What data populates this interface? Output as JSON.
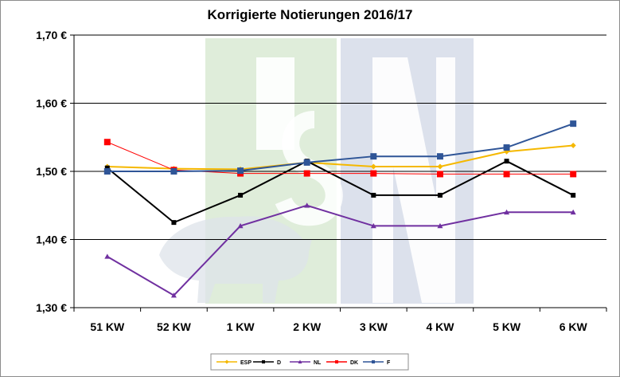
{
  "chart_data": {
    "type": "line",
    "title": "Korrigierte Notierungen 2016/17",
    "categories": [
      "51 KW",
      "52 KW",
      "1 KW",
      "2 KW",
      "3 KW",
      "4 KW",
      "5 KW",
      "6 KW"
    ],
    "y_ticks": [
      "1,30 €",
      "1,40 €",
      "1,50 €",
      "1,60 €",
      "1,70 €"
    ],
    "ylim": [
      1.3,
      1.7
    ],
    "grid": true,
    "legend_position": "bottom",
    "series": [
      {
        "name": "ESP",
        "color": "#f5b800",
        "marker": "diamond",
        "values": [
          1.507,
          1.504,
          1.503,
          1.513,
          1.507,
          1.507,
          1.529,
          1.538
        ]
      },
      {
        "name": "D",
        "color": "#000000",
        "marker": "square",
        "values": [
          1.505,
          1.425,
          1.465,
          1.515,
          1.465,
          1.465,
          1.515,
          1.465
        ]
      },
      {
        "name": "NL",
        "color": "#7030a0",
        "marker": "triangle",
        "values": [
          1.375,
          1.318,
          1.42,
          1.45,
          1.42,
          1.42,
          1.44,
          1.44
        ]
      },
      {
        "name": "DK",
        "color": "#ff0000",
        "marker": "square",
        "values": [
          1.543,
          1.502,
          1.497,
          1.497,
          1.497,
          1.496,
          1.496,
          1.496
        ]
      },
      {
        "name": "F",
        "color": "#2f5597",
        "marker": "square",
        "values": [
          1.5,
          1.5,
          1.501,
          1.513,
          1.522,
          1.522,
          1.535,
          1.57
        ]
      }
    ],
    "watermark_text": "ISN",
    "watermark_colors": {
      "left": "#d9ead3",
      "right": "#d6dce9"
    }
  }
}
